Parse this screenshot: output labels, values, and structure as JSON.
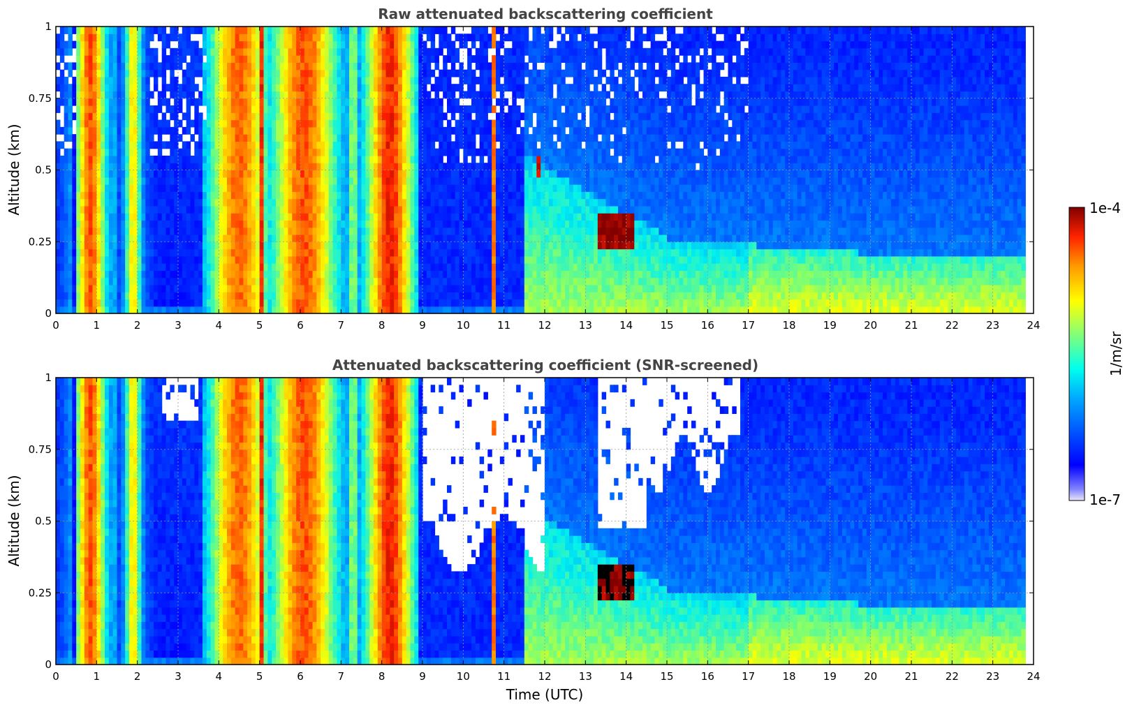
{
  "chart_data": [
    {
      "type": "heatmap",
      "title": "Raw attenuated backscattering coefficient",
      "xlabel": "",
      "ylabel": "Altitude (km)",
      "xlim": [
        0,
        24
      ],
      "ylim": [
        0,
        1
      ],
      "x_ticks": [
        "0",
        "1",
        "2",
        "3",
        "4",
        "5",
        "6",
        "7",
        "8",
        "9",
        "10",
        "11",
        "12",
        "13",
        "14",
        "15",
        "16",
        "17",
        "18",
        "19",
        "20",
        "21",
        "22",
        "23",
        "24"
      ],
      "y_ticks": [
        "0",
        "0.25",
        "0.5",
        "0.75",
        "1"
      ],
      "y_tick_values": [
        0,
        0.25,
        0.5,
        0.75,
        1
      ],
      "grid": true,
      "screened": false
    },
    {
      "type": "heatmap",
      "title": "Attenuated backscattering coefficient (SNR-screened)",
      "xlabel": "Time (UTC)",
      "ylabel": "Altitude (km)",
      "xlim": [
        0,
        24
      ],
      "ylim": [
        0,
        1
      ],
      "x_ticks": [
        "0",
        "1",
        "2",
        "3",
        "4",
        "5",
        "6",
        "7",
        "8",
        "9",
        "10",
        "11",
        "12",
        "13",
        "14",
        "15",
        "16",
        "17",
        "18",
        "19",
        "20",
        "21",
        "22",
        "23",
        "24"
      ],
      "y_ticks": [
        "0",
        "0.25",
        "0.5",
        "0.75",
        "1"
      ],
      "y_tick_values": [
        0,
        0.25,
        0.5,
        0.75,
        1
      ],
      "grid": true,
      "screened": true
    }
  ],
  "colorbar": {
    "max_label": "1e-4",
    "min_label": "1e-7",
    "unit_label": "1/m/sr",
    "colormap": "jet"
  }
}
